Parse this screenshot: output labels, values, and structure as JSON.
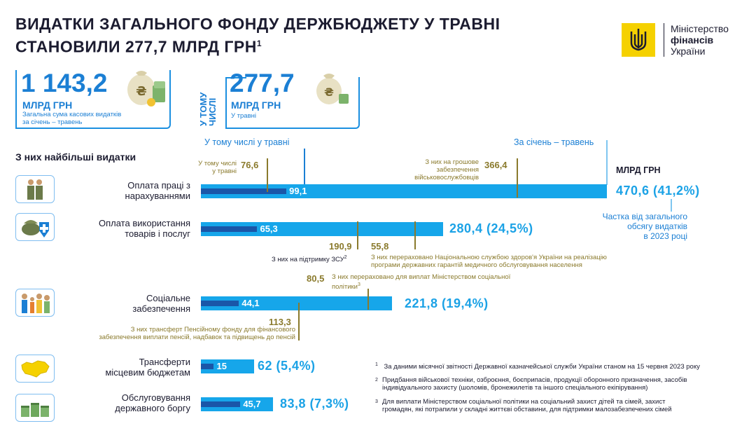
{
  "header": {
    "title_line1": "Видатки загального фонду держбюджету у травні",
    "title_line2": "становили 277,7 млрд грн",
    "title_sup": "1"
  },
  "logo": {
    "line1": "Міністерство",
    "line2": "фінансів",
    "line3": "України"
  },
  "summary": {
    "total_value": "1 143,2",
    "total_unit": "МЛРД ГРН",
    "total_desc_line1": "Загальна сума касових видатків",
    "total_desc_line2": "за січень – травень",
    "incl_label_line1": "У ТОМУ",
    "incl_label_line2": "ЧИСЛІ",
    "may_value": "277,7",
    "may_unit": "МЛРД ГРН",
    "may_desc": "У травні"
  },
  "section_title": "З них найбільші видатки",
  "legend": {
    "may_label": "У тому числі у травні",
    "ytd_label": "За січень – травень",
    "unit": "МЛРД ГРН",
    "share_note_line1": "Частка від загального",
    "share_note_line2": "обсягу видатків",
    "share_note_line3": "в 2023 році"
  },
  "chart_data": {
    "type": "bar",
    "orientation": "horizontal",
    "unit": "МЛРД ГРН",
    "categories": [
      "Оплата праці з нарахуваннями",
      "Оплата використання товарів і послуг",
      "Соціальне забезпечення",
      "Трансферти місцевим бюджетам",
      "Обслуговування державного боргу"
    ],
    "series": [
      {
        "name": "За січень – травень",
        "values": [
          470.6,
          280.4,
          221.8,
          62,
          83.8
        ]
      },
      {
        "name": "У тому числі у травні",
        "values": [
          99.1,
          65.3,
          44.1,
          15,
          45.7
        ]
      }
    ],
    "shares": [
      "41,2%",
      "24,5%",
      "19,4%",
      "5,4%",
      "7,3%"
    ],
    "rows": [
      {
        "label_line1": "Оплата праці з",
        "label_line2": "нарахуваннями",
        "may": "99,1",
        "total": "470,6 (41,2%)",
        "icon": "soldiers-icon"
      },
      {
        "label_line1": "Оплата використання",
        "label_line2": "товарів і послуг",
        "may": "65,3",
        "total": "280,4 (24,5%)",
        "icon": "supplies-medical-icon"
      },
      {
        "label_line1": "Соціальне",
        "label_line2": "забезпечення",
        "may": "44,1",
        "total": "221,8 (19,4%)",
        "icon": "family-icon"
      },
      {
        "label_line1": "Трансферти",
        "label_line2": "місцевим бюджетам",
        "may": "15",
        "total": "62 (5,4%)",
        "icon": "ukraine-map-icon"
      },
      {
        "label_line1": "Обслуговування",
        "label_line2": "державного боргу",
        "may": "45,7",
        "total": "83,8 (7,3%)",
        "icon": "money-stacks-icon"
      }
    ],
    "annotations": {
      "salary_may_subset": {
        "value": "76,6",
        "note_line1": "У тому числі",
        "note_line2": "у травні"
      },
      "salary_military": {
        "value": "366,4",
        "note_line1": "З них на грошове",
        "note_line2": "забезпечення",
        "note_line3": "військовослужбовців"
      },
      "goods_zsu": {
        "value": "190,9",
        "note": "З них на підтримку ЗСУ",
        "sup": "2"
      },
      "goods_health": {
        "value": "55,8",
        "note_line1": "З них перераховано Національною службою здоров'я України на реалізацію",
        "note_line2": "програми державних гарантій медичного обслуговування населення"
      },
      "social_ministry": {
        "value": "80,5",
        "note_line1": "З них перераховано для виплат Міністерством соціальної",
        "note_line2": "політики",
        "sup": "3"
      },
      "social_pension": {
        "value": "113,3",
        "note_line1": "З них трансферт Пенсійному фонду для фінансового",
        "note_line2": "забезпечення виплати пенсій, надбавок та підвищень до пенсій"
      }
    }
  },
  "footnotes": [
    {
      "num": "1",
      "text_line1": "За даними місячної звітності Державної казначейської служби України станом на 15 червня 2023 року",
      "text_line2": ""
    },
    {
      "num": "2",
      "text_line1": "Придбання військової техніки, озброєння, боєприпасів, продукції оборонного призначення, засобів",
      "text_line2": "індивідуального захисту (шоломів, бронежилетів та іншого спеціального екіпірування)"
    },
    {
      "num": "3",
      "text_line1": "Для виплати Міністерством соціальної політики на соціальний захист дітей та сімей, захист",
      "text_line2": "громадян, які потрапили у складні життєві обставини, для підтримки малозабезпечених сімей"
    }
  ],
  "colors": {
    "bar_total": "#16a6ea",
    "bar_may": "#1a56a8",
    "gold": "#8a7a2c",
    "accent": "#1b7fd4",
    "logo_bg": "#f5d100"
  }
}
